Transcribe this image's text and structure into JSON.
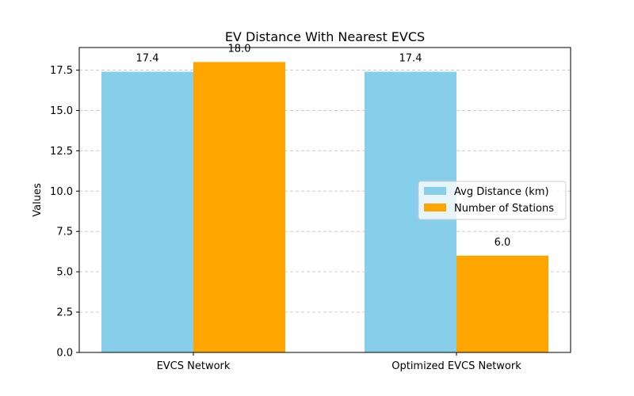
{
  "chart_data": {
    "type": "bar",
    "title": "EV Distance With Nearest EVCS",
    "xlabel": "",
    "ylabel": "Values",
    "categories": [
      "EVCS Network",
      "Optimized EVCS Network"
    ],
    "series": [
      {
        "name": "Avg Distance (km)",
        "values": [
          17.4,
          17.4
        ],
        "color": "#87CEEB",
        "labels": [
          "17.4",
          "17.4"
        ]
      },
      {
        "name": "Number of Stations",
        "values": [
          18.0,
          6.0
        ],
        "color": "#FFA500",
        "labels": [
          "18.0",
          "6.0"
        ]
      }
    ],
    "ylim": [
      0,
      18.9
    ],
    "yticks": [
      0,
      2.5,
      5,
      7.5,
      10,
      12.5,
      15,
      17.5
    ],
    "ytick_labels": [
      "0.0",
      "2.5",
      "5.0",
      "7.5",
      "10.0",
      "12.5",
      "15.0",
      "17.5"
    ],
    "grid": {
      "y": true,
      "style": "dashed",
      "color": "#cccccc"
    },
    "legend": {
      "placement": "center-right"
    }
  }
}
